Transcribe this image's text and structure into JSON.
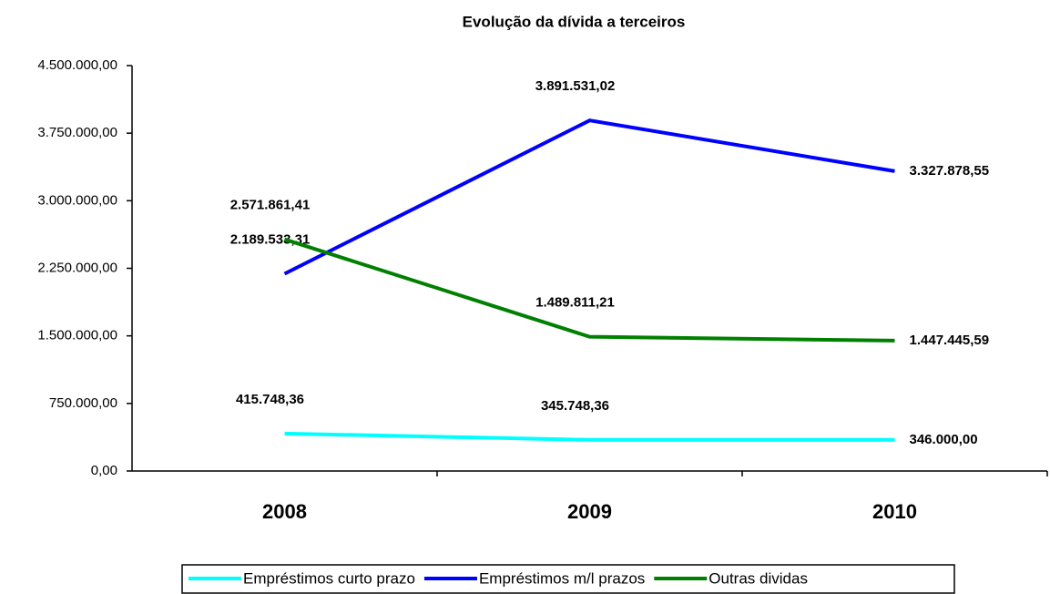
{
  "chart_data": {
    "type": "line",
    "title": "Evolução da dívida a terceiros",
    "categories": [
      "2008",
      "2009",
      "2010"
    ],
    "series": [
      {
        "name": "Empréstimos curto prazo",
        "color": "#00ffff",
        "values": [
          415748.36,
          345748.36,
          346000.0
        ],
        "value_labels": [
          "415.748,36",
          "345.748,36",
          "346.000,00"
        ]
      },
      {
        "name": "Empréstimos m/l prazos",
        "color": "#0000ff",
        "values": [
          2189533.31,
          3891531.02,
          3327878.55
        ],
        "value_labels": [
          "2.189.533,31",
          "3.891.531,02",
          "3.327.878,55"
        ]
      },
      {
        "name": "Outras dividas",
        "color": "#008000",
        "values": [
          2571861.41,
          1489811.21,
          1447445.59
        ],
        "value_labels": [
          "2.571.861,41",
          "1.489.811,21",
          "1.447.445,59"
        ]
      }
    ],
    "ylim": [
      0,
      4500000
    ],
    "yticks": [
      {
        "value": 0,
        "label": "0,00"
      },
      {
        "value": 750000,
        "label": "750.000,00"
      },
      {
        "value": 1500000,
        "label": "1.500.000,00"
      },
      {
        "value": 2250000,
        "label": "2.250.000,00"
      },
      {
        "value": 3000000,
        "label": "3.000.000,00"
      },
      {
        "value": 3750000,
        "label": "3.750.000,00"
      },
      {
        "value": 4500000,
        "label": "4.500.000,00"
      }
    ],
    "grid": false,
    "legend": "bottom"
  }
}
